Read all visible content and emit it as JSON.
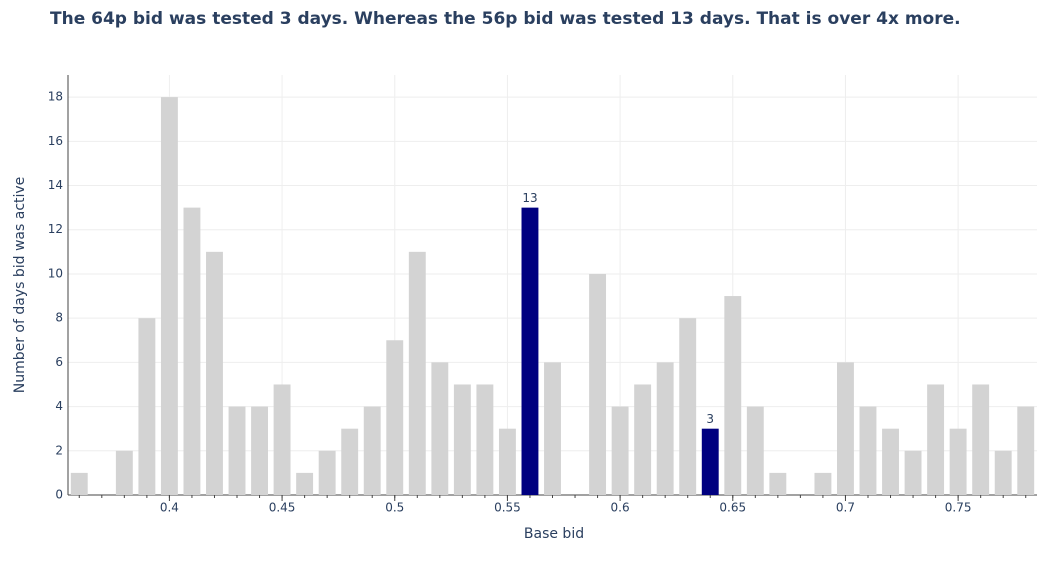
{
  "chart_data": {
    "type": "bar",
    "title": "The 64p bid was tested 3 days. Whereas the 56p bid was tested 13 days. That is over 4x more.",
    "xlabel": "Base bid",
    "ylabel": "Number of days bid was active",
    "x": [
      0.36,
      0.37,
      0.38,
      0.39,
      0.4,
      0.41,
      0.42,
      0.43,
      0.44,
      0.45,
      0.46,
      0.47,
      0.48,
      0.49,
      0.5,
      0.51,
      0.52,
      0.53,
      0.54,
      0.55,
      0.56,
      0.57,
      0.58,
      0.59,
      0.6,
      0.61,
      0.62,
      0.63,
      0.64,
      0.65,
      0.66,
      0.67,
      0.68,
      0.69,
      0.7,
      0.71,
      0.72,
      0.73,
      0.74,
      0.75,
      0.76,
      0.77,
      0.78
    ],
    "values": [
      1,
      0,
      2,
      8,
      18,
      13,
      11,
      4,
      4,
      5,
      1,
      2,
      3,
      4,
      7,
      11,
      6,
      5,
      5,
      3,
      13,
      6,
      0,
      10,
      4,
      5,
      6,
      8,
      3,
      9,
      4,
      1,
      0,
      1,
      6,
      4,
      3,
      2,
      5,
      3,
      5,
      2,
      4
    ],
    "colors": [
      "#d3d3d3",
      "#d3d3d3",
      "#d3d3d3",
      "#d3d3d3",
      "#d3d3d3",
      "#d3d3d3",
      "#d3d3d3",
      "#d3d3d3",
      "#d3d3d3",
      "#d3d3d3",
      "#d3d3d3",
      "#d3d3d3",
      "#d3d3d3",
      "#d3d3d3",
      "#d3d3d3",
      "#d3d3d3",
      "#d3d3d3",
      "#d3d3d3",
      "#d3d3d3",
      "#d3d3d3",
      "#000080",
      "#d3d3d3",
      "#d3d3d3",
      "#d3d3d3",
      "#d3d3d3",
      "#d3d3d3",
      "#d3d3d3",
      "#d3d3d3",
      "#000080",
      "#d3d3d3",
      "#d3d3d3",
      "#d3d3d3",
      "#d3d3d3",
      "#d3d3d3",
      "#d3d3d3",
      "#d3d3d3",
      "#d3d3d3",
      "#d3d3d3",
      "#d3d3d3",
      "#d3d3d3",
      "#d3d3d3",
      "#d3d3d3",
      "#d3d3d3"
    ],
    "label_color": "#000080",
    "xlim": [
      0.355,
      0.785
    ],
    "xticks": [
      0.4,
      0.45,
      0.5,
      0.55,
      0.6,
      0.65,
      0.7,
      0.75
    ],
    "ylim": [
      0,
      19
    ],
    "yticks": [
      0,
      2,
      4,
      6,
      8,
      10,
      12,
      14,
      16,
      18
    ],
    "grid": true
  }
}
